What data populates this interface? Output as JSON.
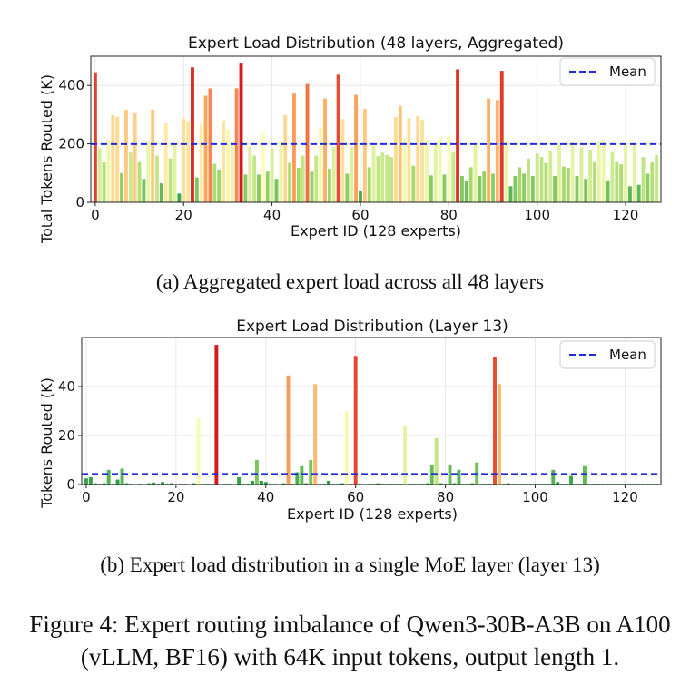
{
  "chart_data": [
    {
      "type": "bar",
      "title": "Expert Load Distribution (48 layers, Aggregated)",
      "xlabel": "Expert ID (128 experts)",
      "ylabel": "Total Tokens Routed (K)",
      "xlim": [
        -1,
        128
      ],
      "ylim": [
        0,
        500
      ],
      "xticks": [
        0,
        20,
        40,
        60,
        80,
        100,
        120
      ],
      "yticks": [
        0,
        200,
        400
      ],
      "grid": true,
      "legend": {
        "position": "top-right",
        "entries": [
          "Mean"
        ]
      },
      "mean": 199,
      "mean_color": "#1f2bd6",
      "color_scale": [
        "#1a9641",
        "#a6d96a",
        "#ffffbf",
        "#fdae61",
        "#d7191c"
      ],
      "x": [
        0,
        1,
        2,
        3,
        4,
        5,
        6,
        7,
        8,
        9,
        10,
        11,
        12,
        13,
        14,
        15,
        16,
        17,
        18,
        19,
        20,
        21,
        22,
        23,
        24,
        25,
        26,
        27,
        28,
        29,
        30,
        31,
        32,
        33,
        34,
        35,
        36,
        37,
        38,
        39,
        40,
        41,
        42,
        43,
        44,
        45,
        46,
        47,
        48,
        49,
        50,
        51,
        52,
        53,
        54,
        55,
        56,
        57,
        58,
        59,
        60,
        61,
        62,
        63,
        64,
        65,
        66,
        67,
        68,
        69,
        70,
        71,
        72,
        73,
        74,
        75,
        76,
        77,
        78,
        79,
        80,
        81,
        82,
        83,
        84,
        85,
        86,
        87,
        88,
        89,
        90,
        91,
        92,
        93,
        94,
        95,
        96,
        97,
        98,
        99,
        100,
        101,
        102,
        103,
        104,
        105,
        106,
        107,
        108,
        109,
        110,
        111,
        112,
        113,
        114,
        115,
        116,
        117,
        118,
        119,
        120,
        121,
        122,
        123,
        124,
        125,
        126,
        127
      ],
      "values": [
        445,
        185,
        138,
        215,
        298,
        292,
        100,
        317,
        170,
        308,
        140,
        80,
        210,
        317,
        160,
        65,
        271,
        150,
        200,
        30,
        287,
        278,
        462,
        85,
        268,
        365,
        390,
        132,
        112,
        280,
        250,
        210,
        390,
        478,
        95,
        190,
        160,
        95,
        240,
        105,
        185,
        80,
        210,
        298,
        135,
        372,
        118,
        160,
        405,
        105,
        160,
        255,
        355,
        115,
        190,
        437,
        285,
        98,
        190,
        368,
        40,
        320,
        120,
        195,
        158,
        170,
        162,
        155,
        292,
        330,
        220,
        288,
        125,
        295,
        282,
        215,
        92,
        200,
        220,
        95,
        230,
        170,
        455,
        90,
        75,
        120,
        200,
        90,
        105,
        355,
        98,
        350,
        450,
        210,
        55,
        90,
        120,
        98,
        150,
        90,
        168,
        155,
        135,
        178,
        90,
        198,
        122,
        118,
        205,
        90,
        188,
        80,
        180,
        140,
        210,
        213,
        75,
        175,
        140,
        130,
        200,
        55,
        200,
        60,
        155,
        98,
        140,
        162
      ]
    },
    {
      "type": "bar",
      "title": "Expert Load Distribution (Layer 13)",
      "xlabel": "Expert ID (128 experts)",
      "ylabel": "Tokens Routed (K)",
      "xlim": [
        -1,
        128
      ],
      "ylim": [
        0,
        60
      ],
      "xticks": [
        0,
        20,
        40,
        60,
        80,
        100,
        120
      ],
      "yticks": [
        0,
        20,
        40
      ],
      "grid": true,
      "legend": {
        "position": "top-right",
        "entries": [
          "Mean"
        ]
      },
      "mean": 4.3,
      "mean_color": "#1f2bd6",
      "color_scale": [
        "#1a9641",
        "#a6d96a",
        "#ffffbf",
        "#fdae61",
        "#d7191c"
      ],
      "x": [
        0,
        1,
        2,
        3,
        4,
        5,
        6,
        7,
        8,
        9,
        10,
        11,
        12,
        13,
        14,
        15,
        16,
        17,
        18,
        19,
        20,
        21,
        22,
        23,
        24,
        25,
        26,
        27,
        28,
        29,
        30,
        31,
        32,
        33,
        34,
        35,
        36,
        37,
        38,
        39,
        40,
        41,
        42,
        43,
        44,
        45,
        46,
        47,
        48,
        49,
        50,
        51,
        52,
        53,
        54,
        55,
        56,
        57,
        58,
        59,
        60,
        61,
        62,
        63,
        64,
        65,
        66,
        67,
        68,
        69,
        70,
        71,
        72,
        73,
        74,
        75,
        76,
        77,
        78,
        79,
        80,
        81,
        82,
        83,
        84,
        85,
        86,
        87,
        88,
        89,
        90,
        91,
        92,
        93,
        94,
        95,
        96,
        97,
        98,
        99,
        100,
        101,
        102,
        103,
        104,
        105,
        106,
        107,
        108,
        109,
        110,
        111,
        112,
        113,
        114,
        115,
        116,
        117,
        118,
        119,
        120,
        121,
        122,
        123,
        124,
        125,
        126,
        127
      ],
      "values": [
        2.5,
        3.0,
        0.5,
        0.3,
        0.5,
        6.0,
        0.3,
        2.0,
        6.5,
        0.5,
        0.3,
        0.2,
        0.3,
        0.2,
        0.5,
        0.8,
        0.3,
        1.0,
        0.3,
        0.5,
        0.2,
        0.3,
        0.3,
        0.2,
        0.5,
        27.0,
        0.3,
        0.3,
        0.3,
        57.0,
        0.2,
        0.3,
        0.3,
        0.2,
        3.0,
        0.3,
        0.3,
        1.5,
        10.0,
        1.5,
        1.0,
        0.3,
        0.3,
        0.2,
        0.5,
        44.5,
        0.3,
        5.0,
        7.5,
        0.5,
        10.0,
        41.0,
        0.3,
        0.3,
        1.5,
        0.3,
        0.3,
        0.5,
        30.0,
        0.3,
        52.5,
        0.3,
        0.2,
        0.3,
        0.3,
        0.5,
        0.3,
        0.3,
        0.3,
        0.3,
        0.3,
        24.0,
        0.3,
        0.3,
        0.3,
        0.3,
        0.5,
        8.0,
        19.0,
        0.5,
        0.3,
        8.0,
        0.5,
        6.0,
        0.3,
        0.3,
        0.5,
        9.0,
        0.3,
        0.3,
        0.3,
        52.0,
        41.0,
        0.3,
        0.5,
        0.3,
        0.3,
        0.3,
        0.3,
        0.3,
        0.3,
        0.3,
        0.3,
        0.3,
        6.0,
        1.0,
        0.3,
        0.3,
        3.5,
        0.3,
        0.3,
        7.5,
        0.3,
        0.3,
        0.3,
        0.3,
        0.3,
        0.3,
        0.3,
        0.3,
        0.3,
        0.3,
        0.3,
        0.3,
        0.3,
        0.3,
        0.3,
        0.3
      ]
    }
  ],
  "captions": {
    "a": "(a) Aggregated expert load across all 48 layers",
    "b": "(b) Expert load distribution in a single MoE layer (layer 13)",
    "figure": "Figure 4: Expert routing imbalance of Qwen3-30B-A3B on A100 (vLLM, BF16) with 64K input tokens, output length 1."
  }
}
